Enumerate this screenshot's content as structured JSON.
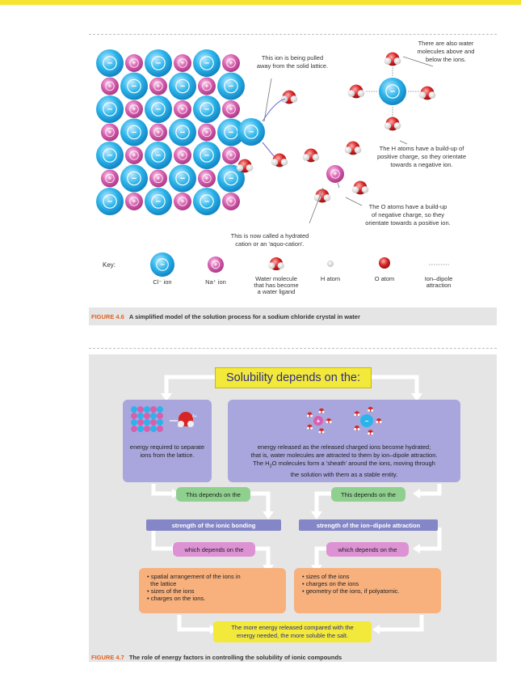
{
  "figure1": {
    "annotations": {
      "pulled": "This ion is being pulled away from the solid lattice.",
      "above_below": "There are also water molecules above and below the ions.",
      "h_atoms": "The H atoms have a build-up of positive charge, so they orientate towards a negative ion.",
      "o_atoms": "The O atoms have a build-up of negative charge, so they orientate towards a positive ion.",
      "hydrated": "This is now called a hydrated cation or an 'aquo-cation'."
    },
    "key": {
      "label": "Key:",
      "cl_ion": "Cl⁻ ion",
      "na_ion": "Na⁺ ion",
      "water_ligand": "Water molecule that has become a water ligand",
      "h_atom": "H atom",
      "o_atom": "O atom",
      "ion_dipole": "Ion–dipole attraction"
    },
    "symbols": {
      "minus": "−",
      "plus": "+"
    },
    "caption_label": "FIGURE 4.6",
    "caption_text": "A simplified model of the solution process for a sodium chloride crystal in water"
  },
  "figure2": {
    "title": "Solubility depends on the:",
    "left_box": "energy required to separate ions from the lattice.",
    "right_box_l1": "energy released as the released charged ions become hydrated;",
    "right_box_l2": "that is, water molecules are attracted to them by ion–dipole attraction.",
    "right_box_l3a": "The H",
    "right_box_sub": "2",
    "right_box_l3b": "O molecules form a 'sheath' around the ions, moving through",
    "right_box_l4": "the solution with them as a stable entity.",
    "depends_left": "This depends on the",
    "depends_right": "This depends on the",
    "strength_left": "strength of the ionic bonding",
    "strength_right": "strength of the ion–dipole attraction",
    "which_left": "which depends on the",
    "which_right": "which depends on the",
    "left_list": [
      "• spatial arrangement of the ions in",
      "  the lattice",
      "• sizes of the ions",
      "• charges on the ions."
    ],
    "right_list": [
      "• sizes of the ions",
      "• charges on the ions",
      "• geometry of the ions, if polyatomic."
    ],
    "conclusion_l1": "The more energy released compared with the",
    "conclusion_l2": "energy needed, the more soluble the salt.",
    "delta_minus": "δ−",
    "delta_plus": "δ+",
    "caption_label": "FIGURE 4.7",
    "caption_text": "The role of energy factors in controlling the solubility of ionic compounds"
  },
  "colors": {
    "cl": "#29b6e8",
    "na": "#d45aac",
    "o": "#d92626",
    "accent": "#f5e531",
    "caption": "#e3611c"
  }
}
